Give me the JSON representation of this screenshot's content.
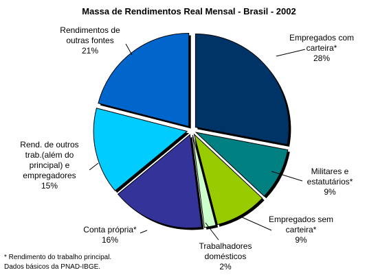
{
  "chart_data": {
    "type": "pie",
    "title": "Massa de Rendimentos Real Mensal - Brasil - 2002",
    "exploded": true,
    "slices": [
      {
        "label_lines": [
          "Empregados com",
          "carteira*"
        ],
        "value_text": "28%",
        "value": 28,
        "color": "#003366"
      },
      {
        "label_lines": [
          "Militares e",
          "estatutários*"
        ],
        "value_text": "9%",
        "value": 9,
        "color": "#008080"
      },
      {
        "label_lines": [
          "Empregados sem",
          "carteira*"
        ],
        "value_text": "9%",
        "value": 9,
        "color": "#99CC00"
      },
      {
        "label_lines": [
          "Trabalhadores",
          "domésticos"
        ],
        "value_text": "2%",
        "value": 2,
        "color": "#CCFFCC"
      },
      {
        "label_lines": [
          "Conta própria*"
        ],
        "value_text": "16%",
        "value": 16,
        "color": "#333399"
      },
      {
        "label_lines": [
          "Rend. de outros",
          "trab.(além do",
          "principal) e",
          "empregadores"
        ],
        "value_text": "15%",
        "value": 15,
        "color": "#00CCFF"
      },
      {
        "label_lines": [
          "Rendimentos de",
          "outras fontes"
        ],
        "value_text": "21%",
        "value": 21,
        "color": "#0066CC"
      }
    ],
    "footnotes": [
      "* Rendimento do trabalho principal.",
      "Dados básicos da PNAD-IBGE."
    ]
  }
}
